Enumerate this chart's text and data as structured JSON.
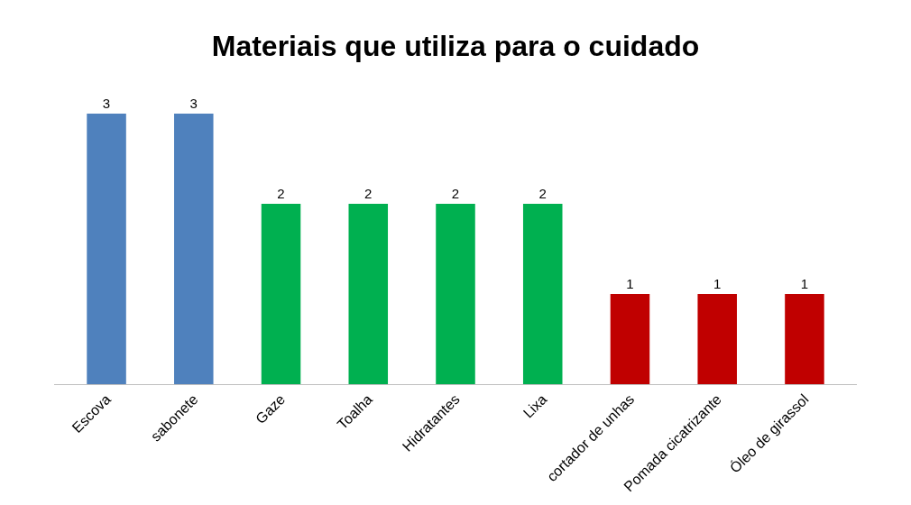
{
  "chart_data": {
    "type": "bar",
    "title": "Materiais que utiliza para o cuidado",
    "categories": [
      "Escova",
      "sabonete",
      "Gaze",
      "Toalha",
      "Hidratantes",
      "Lixa",
      "cortador de unhas",
      "Pomada cicatrizante",
      "Óleo de girassol"
    ],
    "values": [
      3,
      3,
      2,
      2,
      2,
      2,
      1,
      1,
      1
    ],
    "colors": [
      "#4f81bd",
      "#4f81bd",
      "#00b050",
      "#00b050",
      "#00b050",
      "#00b050",
      "#c00000",
      "#c00000",
      "#c00000"
    ],
    "data_labels": true
  }
}
